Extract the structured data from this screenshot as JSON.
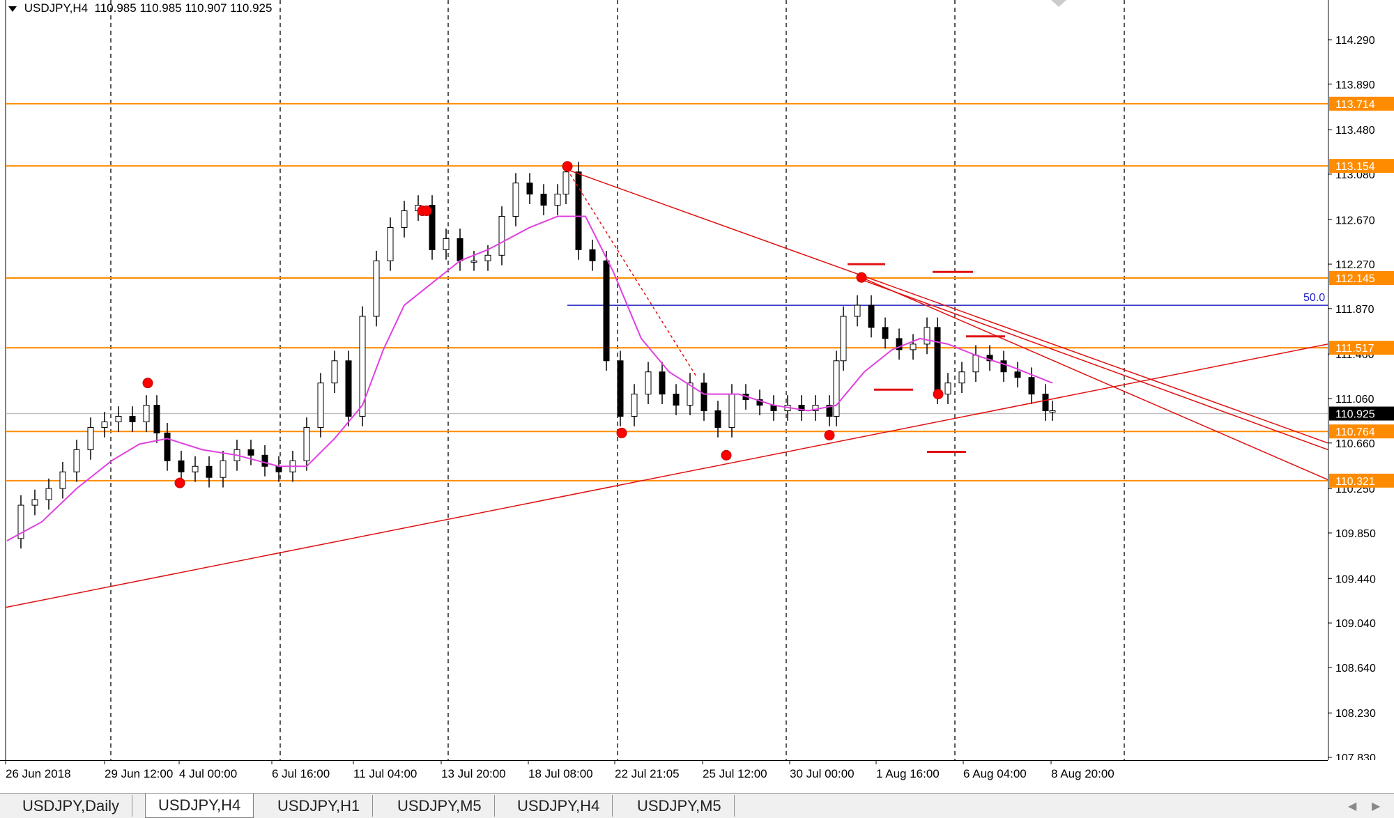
{
  "symbol_info": {
    "symbol": "USDJPY,H4",
    "ohlc": "110.985 110.985 110.907 110.925"
  },
  "price_axis": {
    "ticks": [
      "114.290",
      "113.890",
      "113.480",
      "113.080",
      "112.670",
      "112.270",
      "111.870",
      "111.460",
      "111.060",
      "110.660",
      "110.250",
      "109.850",
      "109.440",
      "109.040",
      "108.640",
      "108.230",
      "107.830"
    ],
    "ymin": 107.83,
    "ymax": 114.29
  },
  "time_axis": {
    "labels": [
      "26 Jun 2018",
      "29 Jun 12:00",
      "4 Jul 00:00",
      "6 Jul 16:00",
      "11 Jul 04:00",
      "13 Jul 20:00",
      "18 Jul 08:00",
      "22 Jul 21:05",
      "25 Jul 12:00",
      "30 Jul 00:00",
      "1 Aug 16:00",
      "6 Aug 04:00",
      "8 Aug 20:00"
    ]
  },
  "levels": [
    {
      "price": 113.714,
      "label": "113.714"
    },
    {
      "price": 113.154,
      "label": "113.154"
    },
    {
      "price": 112.145,
      "label": "112.145"
    },
    {
      "price": 111.517,
      "label": "111.517"
    },
    {
      "price": 110.764,
      "label": "110.764"
    },
    {
      "price": 110.321,
      "label": "110.321"
    }
  ],
  "current_price": {
    "price": 110.925,
    "label": "110.925"
  },
  "fib_line": {
    "price": 111.9,
    "label": "50.0"
  },
  "colors": {
    "level": "#ff8c00",
    "trend": "#e01010",
    "ma": "#e040e0",
    "fib": "#2020c0",
    "bull": "#ffffff",
    "bear": "#000000"
  },
  "tabs": [
    {
      "label": "USDJPY,Daily",
      "active": false
    },
    {
      "label": "USDJPY,H4",
      "active": true
    },
    {
      "label": "USDJPY,H1",
      "active": false
    },
    {
      "label": "USDJPY,M5",
      "active": false
    },
    {
      "label": "USDJPY,H4",
      "active": false
    },
    {
      "label": "USDJPY,M5",
      "active": false
    }
  ],
  "icons": {
    "dropdown": "dropdown-triangle-icon",
    "scroll_left": "scroll-left-icon",
    "scroll_right": "scroll-right-icon"
  }
}
